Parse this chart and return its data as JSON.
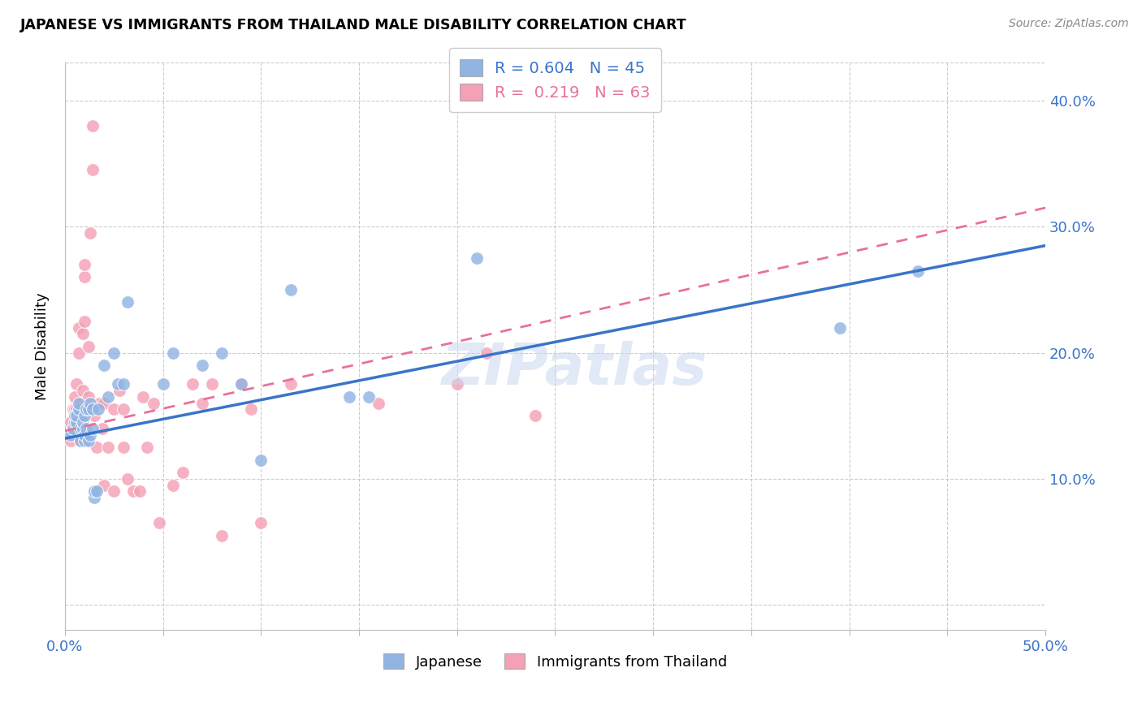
{
  "title": "JAPANESE VS IMMIGRANTS FROM THAILAND MALE DISABILITY CORRELATION CHART",
  "source": "Source: ZipAtlas.com",
  "ylabel": "Male Disability",
  "xlim": [
    0.0,
    0.5
  ],
  "ylim": [
    -0.02,
    0.43
  ],
  "ytick_vals": [
    0.0,
    0.1,
    0.2,
    0.3,
    0.4
  ],
  "ytick_labels_right": [
    "",
    "10.0%",
    "20.0%",
    "30.0%",
    "40.0%"
  ],
  "xtick_vals": [
    0.0,
    0.05,
    0.1,
    0.15,
    0.2,
    0.25,
    0.3,
    0.35,
    0.4,
    0.45,
    0.5
  ],
  "japanese_color": "#92b4e3",
  "thailand_color": "#f4a0b5",
  "japanese_line_color": "#3a74c9",
  "thailand_line_color": "#e87299",
  "japan_R": "0.604",
  "japan_N": "45",
  "thailand_R": "0.219",
  "thailand_N": "63",
  "legend_label_japanese": "Japanese",
  "legend_label_thailand": "Immigrants from Thailand",
  "watermark": "ZIPatlas",
  "japanese_line_x0": 0.0,
  "japanese_line_y0": 0.132,
  "japanese_line_x1": 0.5,
  "japanese_line_y1": 0.285,
  "thailand_line_x0": 0.0,
  "thailand_line_y0": 0.138,
  "thailand_line_x1": 0.5,
  "thailand_line_y1": 0.315,
  "japanese_x": [
    0.003,
    0.004,
    0.005,
    0.005,
    0.006,
    0.006,
    0.007,
    0.007,
    0.008,
    0.008,
    0.009,
    0.009,
    0.01,
    0.01,
    0.01,
    0.011,
    0.011,
    0.012,
    0.012,
    0.013,
    0.013,
    0.014,
    0.014,
    0.015,
    0.015,
    0.016,
    0.017,
    0.02,
    0.022,
    0.025,
    0.027,
    0.03,
    0.032,
    0.05,
    0.055,
    0.07,
    0.08,
    0.09,
    0.1,
    0.115,
    0.145,
    0.155,
    0.21,
    0.395,
    0.435
  ],
  "japanese_y": [
    0.135,
    0.14,
    0.145,
    0.15,
    0.145,
    0.15,
    0.155,
    0.16,
    0.13,
    0.14,
    0.14,
    0.145,
    0.13,
    0.135,
    0.15,
    0.14,
    0.155,
    0.13,
    0.155,
    0.135,
    0.16,
    0.14,
    0.155,
    0.085,
    0.09,
    0.09,
    0.155,
    0.19,
    0.165,
    0.2,
    0.175,
    0.175,
    0.24,
    0.175,
    0.2,
    0.19,
    0.2,
    0.175,
    0.115,
    0.25,
    0.165,
    0.165,
    0.275,
    0.22,
    0.265
  ],
  "thailand_x": [
    0.003,
    0.003,
    0.004,
    0.004,
    0.005,
    0.005,
    0.005,
    0.006,
    0.006,
    0.006,
    0.007,
    0.007,
    0.007,
    0.007,
    0.008,
    0.008,
    0.008,
    0.009,
    0.009,
    0.01,
    0.01,
    0.01,
    0.011,
    0.011,
    0.012,
    0.012,
    0.013,
    0.014,
    0.014,
    0.015,
    0.016,
    0.017,
    0.018,
    0.019,
    0.02,
    0.02,
    0.022,
    0.025,
    0.025,
    0.028,
    0.03,
    0.03,
    0.032,
    0.035,
    0.038,
    0.04,
    0.042,
    0.045,
    0.048,
    0.055,
    0.06,
    0.065,
    0.07,
    0.075,
    0.08,
    0.09,
    0.095,
    0.1,
    0.115,
    0.16,
    0.2,
    0.215,
    0.24
  ],
  "thailand_y": [
    0.13,
    0.145,
    0.135,
    0.155,
    0.14,
    0.155,
    0.165,
    0.145,
    0.155,
    0.175,
    0.145,
    0.155,
    0.2,
    0.22,
    0.13,
    0.15,
    0.16,
    0.17,
    0.215,
    0.225,
    0.26,
    0.27,
    0.135,
    0.155,
    0.165,
    0.205,
    0.295,
    0.345,
    0.38,
    0.15,
    0.125,
    0.16,
    0.16,
    0.14,
    0.095,
    0.16,
    0.125,
    0.09,
    0.155,
    0.17,
    0.125,
    0.155,
    0.1,
    0.09,
    0.09,
    0.165,
    0.125,
    0.16,
    0.065,
    0.095,
    0.105,
    0.175,
    0.16,
    0.175,
    0.055,
    0.175,
    0.155,
    0.065,
    0.175,
    0.16,
    0.175,
    0.2,
    0.15
  ]
}
